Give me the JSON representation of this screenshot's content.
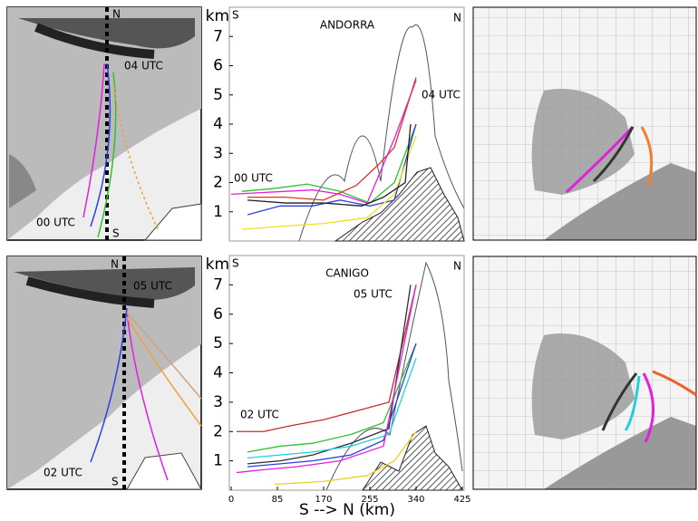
{
  "chart_data": [
    {
      "type": "line",
      "title": "ANDORRA",
      "left_label": "S",
      "right_label": "N",
      "ylabel": "km",
      "annotations": [
        "00 UTC",
        "04 UTC"
      ],
      "xlim": [
        0,
        425
      ],
      "ylim": [
        0,
        8
      ],
      "yticks": [
        1,
        2,
        3,
        4,
        5,
        6,
        7
      ],
      "series": [
        {
          "name": "magenta",
          "color": "#e020e0",
          "x": [
            0,
            50,
            100,
            150,
            200,
            250,
            300,
            340
          ],
          "values": [
            1.6,
            1.65,
            1.7,
            1.75,
            1.6,
            1.3,
            3.5,
            5.5
          ]
        },
        {
          "name": "green",
          "color": "#30c030",
          "x": [
            20,
            80,
            140,
            200,
            255,
            300,
            340
          ],
          "values": [
            1.7,
            1.8,
            1.95,
            1.7,
            1.3,
            2,
            4
          ]
        },
        {
          "name": "red",
          "color": "#e03030",
          "x": [
            30,
            100,
            170,
            230,
            270,
            300,
            340
          ],
          "values": [
            1.5,
            1.5,
            1.4,
            1.9,
            2.6,
            3.2,
            5.6
          ]
        },
        {
          "name": "blue",
          "color": "#3040e0",
          "x": [
            30,
            90,
            150,
            200,
            255,
            300,
            340
          ],
          "values": [
            0.9,
            1.2,
            1.2,
            1.4,
            1.2,
            1.4,
            4
          ]
        },
        {
          "name": "yellow",
          "color": "#f0e020",
          "x": [
            20,
            90,
            170,
            250,
            300,
            340
          ],
          "values": [
            0.4,
            0.5,
            0.6,
            0.8,
            1.6,
            3.6
          ]
        },
        {
          "name": "black",
          "color": "#202020",
          "x": [
            30,
            100,
            170,
            240,
            280,
            320,
            330
          ],
          "values": [
            1.4,
            1.3,
            1.3,
            1.2,
            1.5,
            2,
            4
          ]
        }
      ]
    },
    {
      "type": "line",
      "title": "CANIGO",
      "left_label": "S",
      "right_label": "N",
      "ylabel": "km",
      "xlabel": "S --> N (km)",
      "annotations": [
        "02 UTC",
        "05 UTC"
      ],
      "xlim": [
        0,
        425
      ],
      "ylim": [
        0,
        8
      ],
      "yticks": [
        1,
        2,
        3,
        4,
        5,
        6,
        7
      ],
      "xticks": [
        0,
        85,
        170,
        255,
        340,
        425
      ],
      "series": [
        {
          "name": "red",
          "color": "#c03030",
          "x": [
            10,
            60,
            110,
            170,
            230,
            290,
            340
          ],
          "values": [
            2,
            2,
            2.2,
            2.4,
            2.7,
            3,
            7
          ]
        },
        {
          "name": "green",
          "color": "#30c030",
          "x": [
            30,
            90,
            150,
            220,
            280,
            340
          ],
          "values": [
            1.3,
            1.5,
            1.6,
            1.9,
            2.3,
            5
          ]
        },
        {
          "name": "black",
          "color": "#303030",
          "x": [
            30,
            90,
            150,
            220,
            290,
            330
          ],
          "values": [
            0.9,
            1,
            1.2,
            1.6,
            2.1,
            7
          ]
        },
        {
          "name": "blue",
          "color": "#3040e0",
          "x": [
            30,
            90,
            150,
            220,
            280,
            340
          ],
          "values": [
            0.8,
            0.9,
            1,
            1.2,
            1.7,
            5
          ]
        },
        {
          "name": "cyan",
          "color": "#20d0e0",
          "x": [
            30,
            90,
            150,
            220,
            290,
            340
          ],
          "values": [
            1.1,
            1.2,
            1.3,
            1.5,
            1.9,
            4.5
          ]
        },
        {
          "name": "magenta",
          "color": "#e020e0",
          "x": [
            10,
            60,
            120,
            200,
            280,
            340
          ],
          "values": [
            0.6,
            0.7,
            0.8,
            1,
            1.5,
            7
          ]
        },
        {
          "name": "yellow",
          "color": "#f0d020",
          "x": [
            80,
            170,
            250,
            300,
            340
          ],
          "values": [
            0.2,
            0.3,
            0.5,
            1,
            2
          ]
        }
      ]
    }
  ],
  "maps": [
    {
      "labels": [
        "N",
        "S",
        "04 UTC",
        "00 UTC"
      ]
    },
    {
      "labels": [
        "N",
        "S",
        "05 UTC",
        "02 UTC"
      ]
    }
  ]
}
